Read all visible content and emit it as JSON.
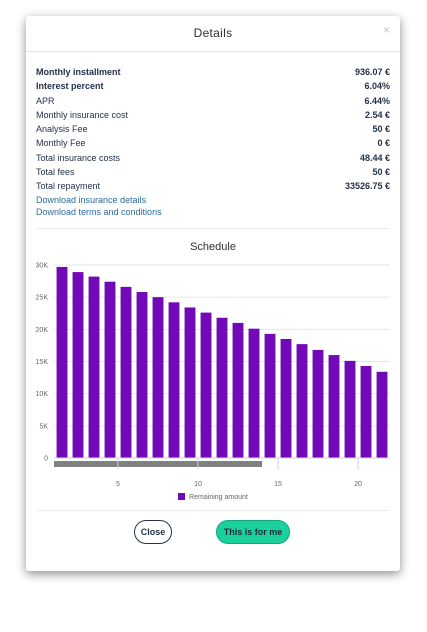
{
  "dialog": {
    "title": "Details",
    "close_glyph": "×"
  },
  "details": [
    {
      "label": "Monthly installment",
      "value": "936.07 €",
      "bold": true
    },
    {
      "label": "Interest percent",
      "value": "6.04%",
      "bold": true
    },
    {
      "label": "APR",
      "value": "6.44%",
      "bold": false
    },
    {
      "label": "Monthly insurance cost",
      "value": "2.54 €",
      "bold": false
    },
    {
      "label": "Analysis Fee",
      "value": "50 €",
      "bold": false
    },
    {
      "label": "Monthly Fee",
      "value": "0 €",
      "bold": false
    },
    {
      "label": "Total insurance costs",
      "value": "48.44 €",
      "bold": false
    },
    {
      "label": "Total fees",
      "value": "50 €",
      "bold": false
    },
    {
      "label": "Total repayment",
      "value": "33526.75 €",
      "bold": false
    }
  ],
  "links": {
    "insurance": "Download insurance details",
    "terms": "Download terms and conditions"
  },
  "schedule_title": "Schedule",
  "buttons": {
    "close": "Close",
    "accept": "This is for me"
  },
  "colors": {
    "bar": "#7209b7",
    "accept": "#1ad19d",
    "scrollbar": "#808080"
  },
  "chart_data": {
    "type": "bar",
    "title": "",
    "x": [
      1,
      2,
      3,
      4,
      5,
      6,
      7,
      8,
      9,
      10,
      11,
      12,
      13,
      14,
      15,
      16,
      17,
      18,
      19,
      20,
      21
    ],
    "series": [
      {
        "name": "Remaining amount",
        "values": [
          29700,
          28900,
          28200,
          27400,
          26600,
          25800,
          25000,
          24200,
          23400,
          22600,
          21800,
          21000,
          20100,
          19300,
          18500,
          17700,
          16800,
          16000,
          15100,
          14300,
          13400
        ]
      }
    ],
    "ylim": [
      0,
      30000
    ],
    "yticks": [
      0,
      5000,
      10000,
      15000,
      20000,
      25000,
      30000
    ],
    "ytick_labels": [
      "0",
      "5K",
      "10K",
      "15K",
      "20K",
      "25K",
      "30K"
    ],
    "xticks": [
      5,
      10,
      15,
      20
    ],
    "xtick_labels": [
      "5",
      "10",
      "15",
      "20"
    ],
    "grid": true,
    "legend": "bottom-center",
    "scroll_window": [
      1,
      13
    ]
  }
}
